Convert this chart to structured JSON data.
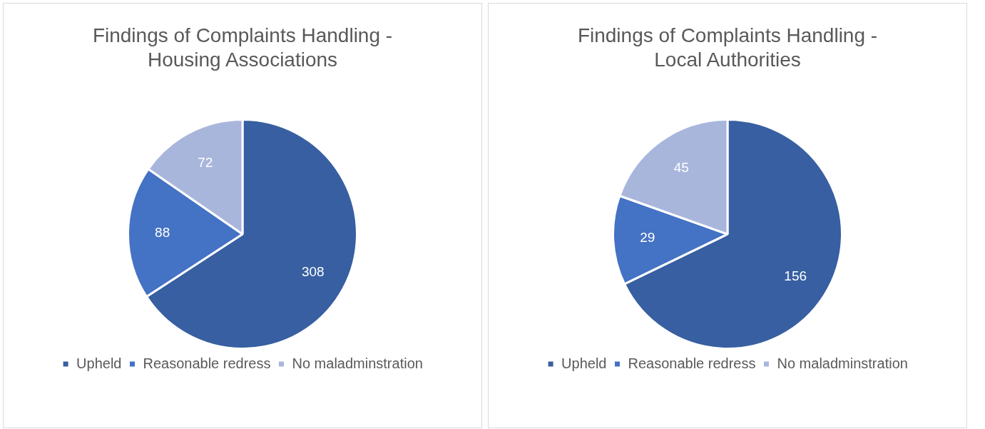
{
  "chart_data": [
    {
      "type": "pie",
      "title": "Findings of Complaints Handling - Housing Associations",
      "categories": [
        "Upheld",
        "Reasonable redress",
        "No maladminstration"
      ],
      "values": [
        308,
        88,
        72
      ],
      "colors": [
        "#375fa1",
        "#4472c4",
        "#a9b6dc"
      ],
      "data_labels": true,
      "legend": "bottom"
    },
    {
      "type": "pie",
      "title": "Findings of Complaints Handling - Local Authorities",
      "categories": [
        "Upheld",
        "Reasonable redress",
        "No maladminstration"
      ],
      "values": [
        156,
        29,
        45
      ],
      "colors": [
        "#375fa1",
        "#4472c4",
        "#a9b6dc"
      ],
      "data_labels": true,
      "legend": "bottom"
    }
  ]
}
